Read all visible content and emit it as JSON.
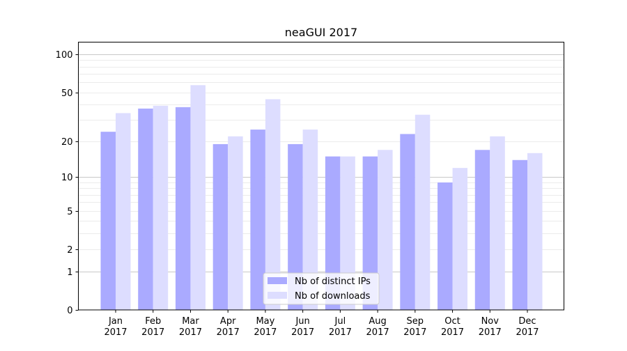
{
  "chart_data": {
    "type": "bar",
    "title": "neaGUI 2017",
    "xlabel": "",
    "ylabel": "",
    "yscale": "log10(1+y)",
    "ylim": [
      0,
      126
    ],
    "yticks": [
      0,
      1,
      2,
      5,
      10,
      20,
      50,
      100
    ],
    "grid": "horizontal, major and minor",
    "legend_position": "bottom-center",
    "categories": [
      "Jan\n2017",
      "Feb\n2017",
      "Mar\n2017",
      "Apr\n2017",
      "May\n2017",
      "Jun\n2017",
      "Jul\n2017",
      "Aug\n2017",
      "Sep\n2017",
      "Oct\n2017",
      "Nov\n2017",
      "Dec\n2017"
    ],
    "series": [
      {
        "name": "Nb of distinct IPs",
        "color": "#aaaaff",
        "values": [
          24,
          37,
          38,
          19,
          25,
          19,
          15,
          15,
          23,
          9,
          17,
          14
        ]
      },
      {
        "name": "Nb of downloads",
        "color": "#ddddff",
        "values": [
          34,
          39,
          57,
          22,
          44,
          25,
          15,
          17,
          33,
          12,
          22,
          16
        ]
      }
    ]
  }
}
